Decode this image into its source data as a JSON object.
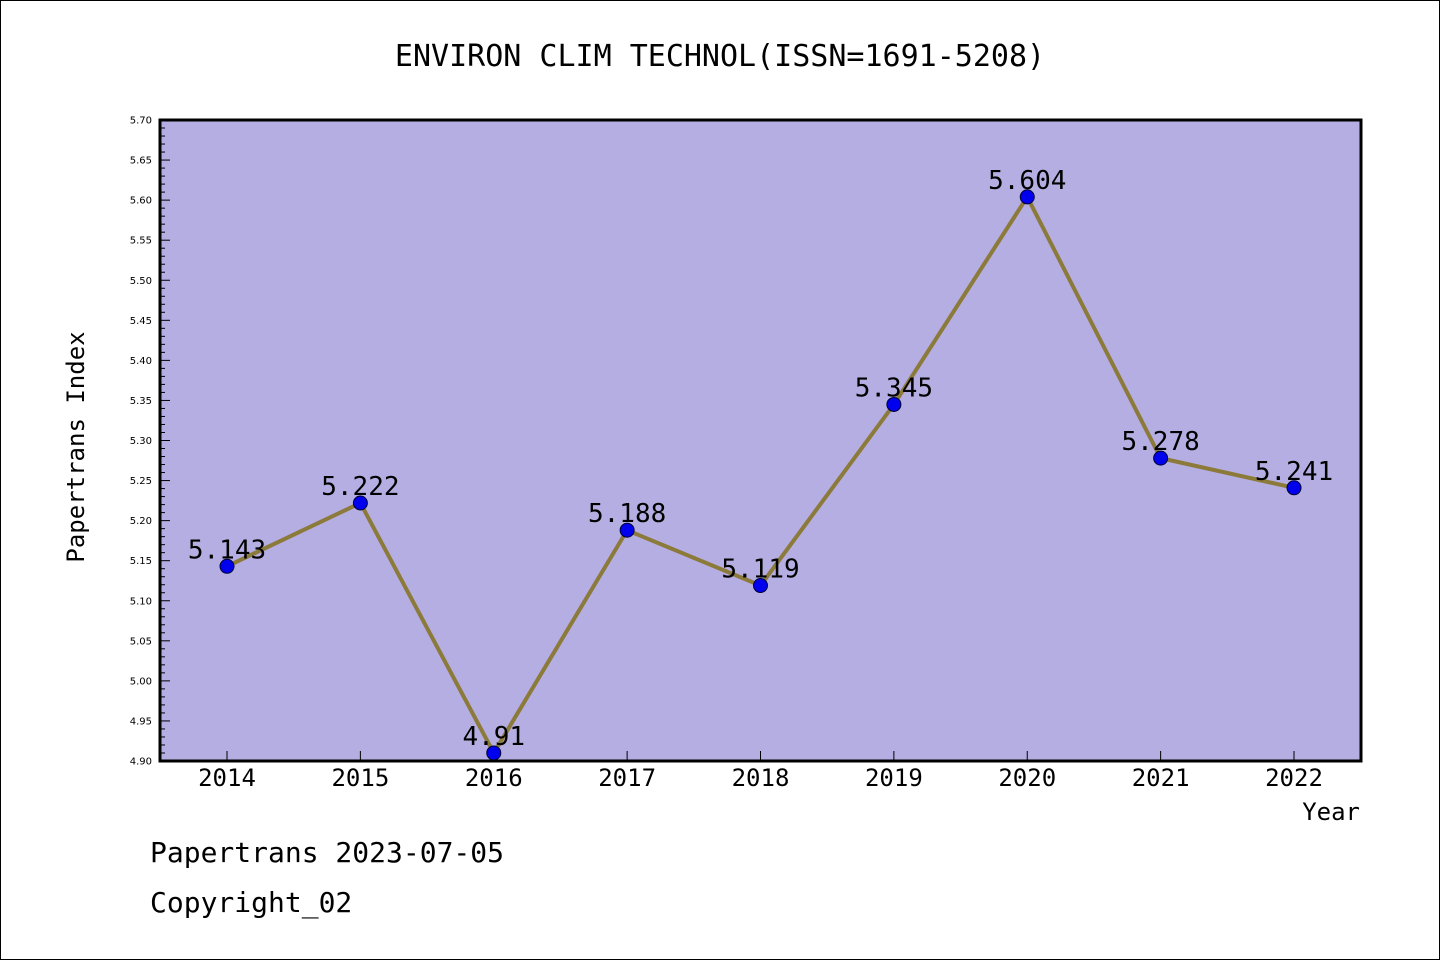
{
  "chart_data": {
    "type": "line",
    "title": "ENVIRON CLIM TECHNOL(ISSN=1691-5208)",
    "xlabel": "Year",
    "ylabel": "Papertrans Index",
    "categories": [
      "2014",
      "2015",
      "2016",
      "2017",
      "2018",
      "2019",
      "2020",
      "2021",
      "2022"
    ],
    "values": [
      5.143,
      5.222,
      4.91,
      5.188,
      5.119,
      5.345,
      5.604,
      5.278,
      5.241
    ],
    "data_labels": [
      "5.143",
      "5.222",
      "4.91",
      "5.188",
      "5.119",
      "5.345",
      "5.604",
      "5.278",
      "5.241"
    ],
    "ylim": [
      4.9,
      5.7
    ],
    "yticks": [
      "4.90",
      "4.95",
      "5.00",
      "5.05",
      "5.10",
      "5.15",
      "5.20",
      "5.25",
      "5.30",
      "5.35",
      "5.40",
      "5.45",
      "5.50",
      "5.55",
      "5.60",
      "5.65",
      "5.70"
    ],
    "grid": false,
    "plot_background": "#b5aee2",
    "line_color": "#8b7a3a",
    "marker_color": "#0000ee"
  },
  "footer": {
    "date_line": "Papertrans 2023-07-05",
    "copyright_line": "Copyright_02"
  }
}
